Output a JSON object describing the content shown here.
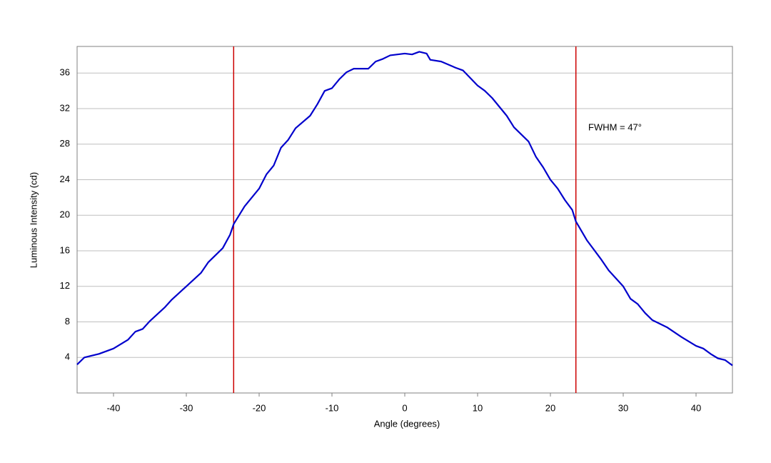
{
  "chart_data": {
    "type": "line",
    "x_label": "Angle (degrees)",
    "y_label": "Luminous Intensity (cd)",
    "annotation": "FWHM = 47°",
    "xlim": [
      -45,
      45
    ],
    "xticks": [
      -40,
      -30,
      -20,
      -10,
      0,
      10,
      20,
      30,
      40
    ],
    "ylim": [
      0,
      39
    ],
    "yticks": [
      4,
      8,
      12,
      16,
      20,
      24,
      28,
      32,
      36
    ],
    "grid": true,
    "vlines": [
      {
        "x": -23.5,
        "color": "#cc0000"
      },
      {
        "x": 23.5,
        "color": "#cc0000"
      }
    ],
    "x": [
      -45,
      -44,
      -42,
      -40,
      -38,
      -37,
      -36,
      -35,
      -33,
      -32,
      -30,
      -28,
      -27,
      -25,
      -24,
      -23.5,
      -22,
      -20,
      -19,
      -18,
      -17,
      -16,
      -15,
      -13,
      -12,
      -11,
      -10,
      -9,
      -8,
      -7,
      -5,
      -4,
      -3,
      -2,
      0,
      1,
      2,
      3,
      3.5,
      5,
      7,
      8,
      10,
      11,
      12,
      14,
      15,
      17,
      18,
      19,
      20,
      21,
      22,
      23,
      23.5,
      25,
      27,
      28,
      30,
      31,
      32,
      33,
      34,
      36,
      38,
      40,
      41,
      42,
      43,
      44,
      45
    ],
    "series": [
      {
        "color": "#0000cc",
        "values": [
          3.2,
          4.0,
          4.4,
          5.0,
          6.0,
          6.9,
          7.2,
          8.1,
          9.6,
          10.5,
          12.0,
          13.5,
          14.7,
          16.3,
          17.8,
          19.0,
          21.0,
          23.0,
          24.6,
          25.6,
          27.6,
          28.5,
          29.8,
          31.2,
          32.5,
          34.0,
          34.3,
          35.3,
          36.1,
          36.5,
          36.5,
          37.3,
          37.6,
          38.0,
          38.2,
          38.1,
          38.4,
          38.2,
          37.5,
          37.3,
          36.6,
          36.3,
          34.6,
          34.0,
          33.2,
          31.2,
          29.9,
          28.3,
          26.6,
          25.4,
          24.0,
          23.0,
          21.7,
          20.6,
          19.3,
          17.2,
          15.0,
          13.8,
          12.0,
          10.6,
          10.0,
          9.0,
          8.2,
          7.4,
          6.3,
          5.3,
          5.0,
          4.4,
          3.9,
          3.7,
          3.1
        ]
      }
    ]
  }
}
